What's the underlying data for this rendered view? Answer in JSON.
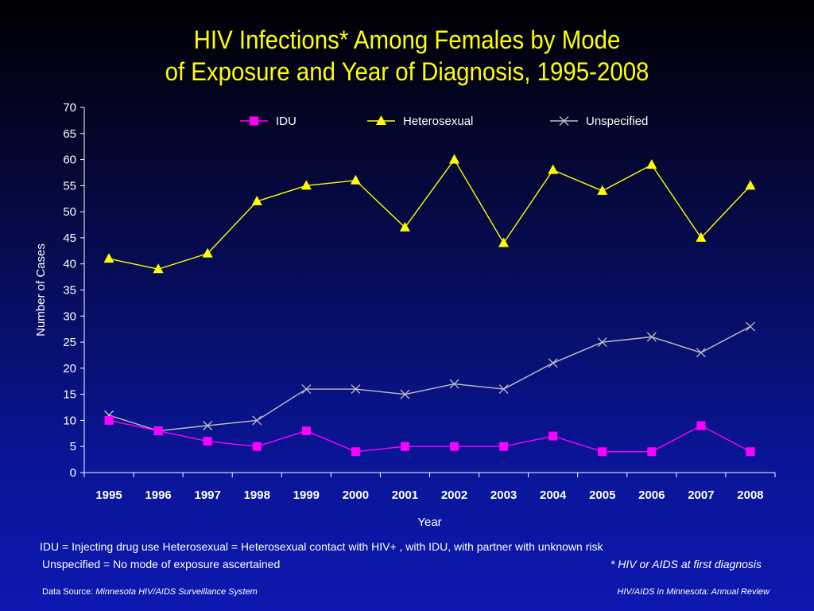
{
  "title_line1": "HIV Infections* Among Females by Mode",
  "title_line2": "of Exposure and Year of Diagnosis, 1995-2008",
  "notes": {
    "line1": "IDU = Injecting drug use  Heterosexual = Heterosexual contact with HIV+ , with IDU, with partner with unknown risk",
    "line2": "Unspecified = No mode of exposure ascertained",
    "asterisk": "* HIV or AIDS at first diagnosis"
  },
  "footer": {
    "source_label": "Data Source: ",
    "source_value": "Minnesota HIV/AIDS Surveillance System",
    "right": "HIV/AIDS in Minnesota: Annual Review"
  },
  "colors": {
    "title": "#ffff00",
    "idu": "#ff00ff",
    "heterosexual": "#ffff00",
    "unspecified": "#c0c0c0",
    "axis": "#ffffff"
  },
  "chart_data": {
    "type": "line",
    "xlabel": "Year",
    "ylabel": "Number of Cases",
    "ylim": [
      0,
      70
    ],
    "yticks": [
      0,
      5,
      10,
      15,
      20,
      25,
      30,
      35,
      40,
      45,
      50,
      55,
      60,
      65,
      70
    ],
    "grid": false,
    "legend": "top",
    "categories": [
      "1995",
      "1996",
      "1997",
      "1998",
      "1999",
      "2000",
      "2001",
      "2002",
      "2003",
      "2004",
      "2005",
      "2006",
      "2007",
      "2008"
    ],
    "series": [
      {
        "name": "IDU",
        "marker": "square",
        "color": "#ff00ff",
        "values": [
          10,
          8,
          6,
          5,
          8,
          4,
          5,
          5,
          5,
          7,
          4,
          4,
          9,
          4
        ]
      },
      {
        "name": "Heterosexual",
        "marker": "triangle",
        "color": "#ffff00",
        "values": [
          41,
          39,
          42,
          52,
          55,
          56,
          47,
          60,
          44,
          58,
          54,
          59,
          45,
          55
        ]
      },
      {
        "name": "Unspecified",
        "marker": "x",
        "color": "#c0c0c0",
        "values": [
          11,
          8,
          9,
          10,
          16,
          16,
          15,
          17,
          16,
          21,
          25,
          26,
          23,
          28
        ]
      }
    ]
  }
}
